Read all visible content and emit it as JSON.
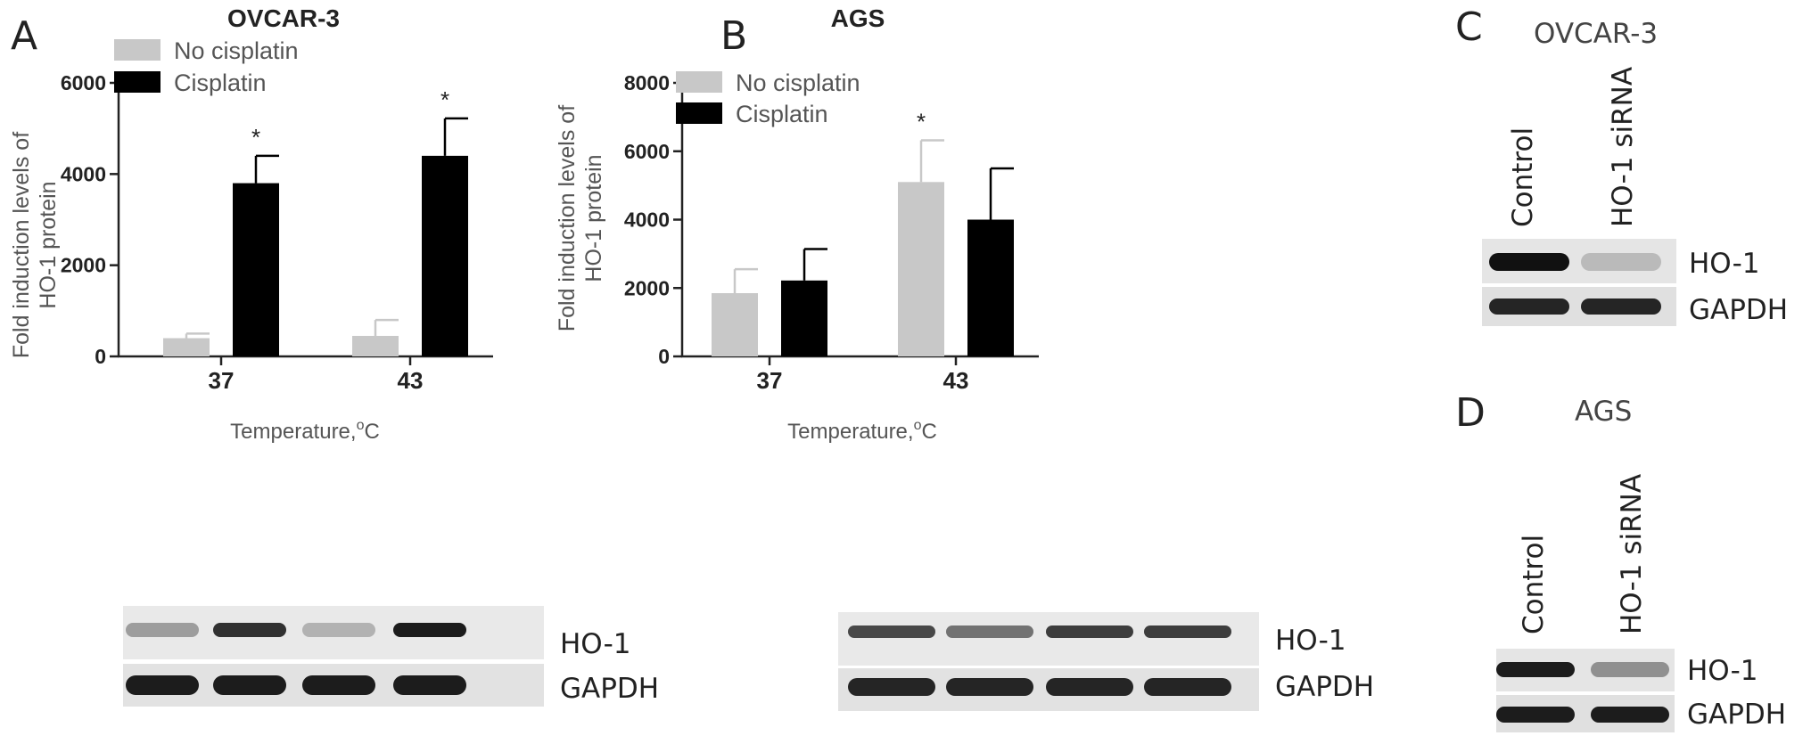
{
  "panels": {
    "A": {
      "letter": "A"
    },
    "B": {
      "letter": "B"
    },
    "C": {
      "letter": "C"
    },
    "D": {
      "letter": "D"
    }
  },
  "chart_data": [
    {
      "type": "bar",
      "title": "OVCAR-3",
      "ylabel_line1": "Fold induction levels of",
      "ylabel_line2": "HO-1 protein",
      "xlabel": "Temperature,",
      "xlabel_sup": "o",
      "xlabel_unit": "C",
      "categories": [
        "37",
        "43"
      ],
      "ylim": [
        0,
        6000
      ],
      "yticks": [
        0,
        2000,
        4000,
        6000
      ],
      "grid": false,
      "legend_position": "top-left",
      "series": [
        {
          "name": "No cisplatin",
          "color": "#c8c8c8",
          "values": [
            400,
            450
          ],
          "errors": [
            100,
            350
          ],
          "significant": [
            false,
            false
          ]
        },
        {
          "name": "Cisplatin",
          "color": "#000000",
          "values": [
            3800,
            4400
          ],
          "errors": [
            600,
            820
          ],
          "significant": [
            true,
            true
          ]
        }
      ],
      "significance_marker": "*"
    },
    {
      "type": "bar",
      "title": "AGS",
      "ylabel_line1": "Fold induction levels of",
      "ylabel_line2": "HO-1 protein",
      "xlabel": "Temperature,",
      "xlabel_sup": "o",
      "xlabel_unit": "C",
      "categories": [
        "37",
        "43"
      ],
      "ylim": [
        0,
        8000
      ],
      "yticks": [
        0,
        2000,
        4000,
        6000,
        8000
      ],
      "grid": false,
      "legend_position": "top-left",
      "series": [
        {
          "name": "No cisplatin",
          "color": "#c8c8c8",
          "values": [
            1850,
            5100
          ],
          "errors": [
            700,
            1220
          ],
          "significant": [
            false,
            true
          ]
        },
        {
          "name": "Cisplatin",
          "color": "#000000",
          "values": [
            2220,
            4000
          ],
          "errors": [
            920,
            1500
          ],
          "significant": [
            false,
            false
          ]
        }
      ],
      "significance_marker": "*"
    }
  ],
  "blots": {
    "A": {
      "rows": [
        "HO-1",
        "GAPDH"
      ],
      "ho1_intensity": [
        0.35,
        0.85,
        0.25,
        0.95
      ],
      "gapdh_intensity": [
        0.95,
        0.95,
        0.95,
        0.95
      ]
    },
    "B": {
      "rows": [
        "HO-1",
        "GAPDH"
      ],
      "ho1_intensity": [
        0.75,
        0.55,
        0.8,
        0.8
      ],
      "gapdh_intensity": [
        0.9,
        0.9,
        0.9,
        0.9
      ]
    },
    "C": {
      "title": "OVCAR-3",
      "lanes": [
        "Control",
        "HO-1 siRNA"
      ],
      "rows": [
        "HO-1",
        "GAPDH"
      ],
      "ho1_intensity": [
        1.0,
        0.2
      ],
      "gapdh_intensity": [
        0.9,
        0.9
      ]
    },
    "D": {
      "title": "AGS",
      "lanes": [
        "Control",
        "HO-1 siRNA"
      ],
      "rows": [
        "HO-1",
        "GAPDH"
      ],
      "ho1_intensity": [
        0.95,
        0.4
      ],
      "gapdh_intensity": [
        0.95,
        0.95
      ]
    }
  }
}
